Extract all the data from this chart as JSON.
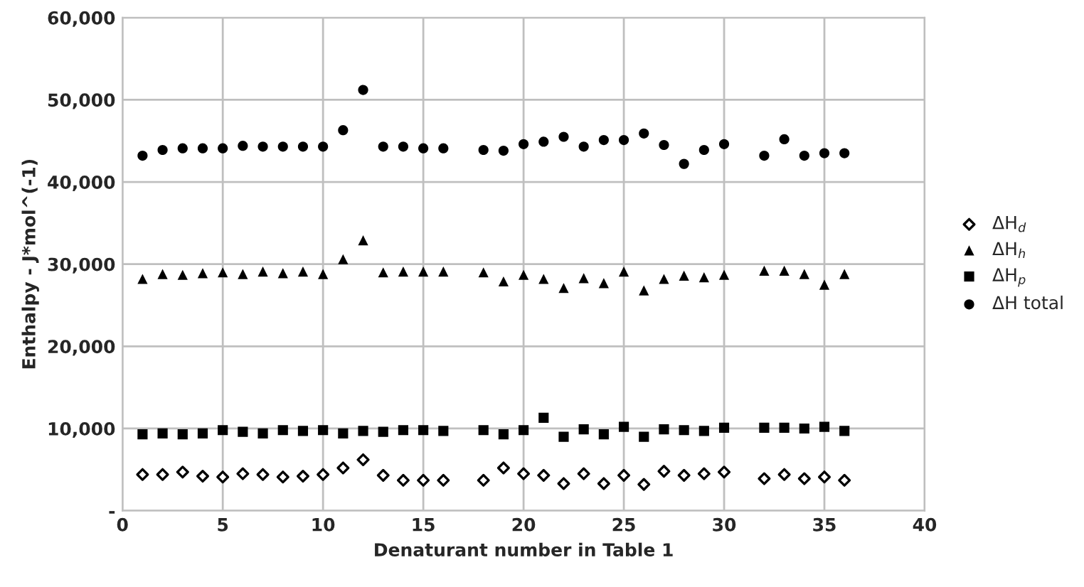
{
  "chart_data": {
    "type": "scatter",
    "xlabel": "Denaturant number in Table 1",
    "ylabel": "Enthalpy - J*mol^(-1)",
    "x": [
      1,
      2,
      3,
      4,
      5,
      6,
      7,
      8,
      9,
      10,
      11,
      12,
      13,
      14,
      15,
      16,
      18,
      19,
      20,
      21,
      22,
      23,
      24,
      25,
      26,
      27,
      28,
      29,
      30,
      32,
      33,
      34,
      35,
      36
    ],
    "series": [
      {
        "name": "ΔH$_{d}$",
        "color": "#000000",
        "marker": "diamond",
        "values": [
          4400,
          4400,
          4700,
          4200,
          4100,
          4500,
          4400,
          4100,
          4200,
          4400,
          5200,
          6200,
          4300,
          3700,
          3700,
          3700,
          3700,
          5200,
          4500,
          4300,
          3300,
          4500,
          3300,
          4300,
          3200,
          4800,
          4300,
          4500,
          4700,
          3900,
          4400,
          3900,
          4100,
          3700
        ]
      },
      {
        "name": "ΔH$_{h}$",
        "color": "#000000",
        "marker": "triangle",
        "values": [
          28200,
          28800,
          28700,
          28900,
          29000,
          28800,
          29100,
          28900,
          29100,
          28800,
          30600,
          32900,
          29000,
          29100,
          29100,
          29100,
          29000,
          27900,
          28700,
          28200,
          27100,
          28300,
          27700,
          29100,
          26800,
          28200,
          28600,
          28400,
          28700,
          29200,
          29200,
          28800,
          27500,
          28800
        ]
      },
      {
        "name": "ΔH$_{p}$",
        "color": "#000000",
        "marker": "square",
        "values": [
          9300,
          9400,
          9300,
          9400,
          9800,
          9600,
          9400,
          9800,
          9700,
          9800,
          9400,
          9700,
          9600,
          9800,
          9800,
          9700,
          9800,
          9300,
          9800,
          11300,
          9000,
          9900,
          9300,
          10200,
          9000,
          9900,
          9800,
          9700,
          10100,
          10100,
          10100,
          10000,
          10200,
          9700
        ]
      },
      {
        "name": "ΔH total",
        "color": "#000000",
        "marker": "circle",
        "values": [
          43200,
          43900,
          44100,
          44100,
          44100,
          44400,
          44300,
          44300,
          44300,
          44300,
          46300,
          51200,
          44300,
          44300,
          44100,
          44100,
          43900,
          43800,
          44600,
          44900,
          45500,
          44300,
          45100,
          45100,
          45900,
          44500,
          42200,
          43900,
          44600,
          43200,
          45200,
          43200,
          43500,
          43500
        ]
      }
    ],
    "xlim": [
      0,
      40
    ],
    "xticks": [
      0,
      5,
      10,
      15,
      20,
      25,
      30,
      35,
      40
    ],
    "ylim": [
      0,
      60000
    ],
    "yticks": [
      {
        "value": 0,
        "label": "-"
      },
      {
        "value": 10000,
        "label": "10,000"
      },
      {
        "value": 20000,
        "label": "20,000"
      },
      {
        "value": 30000,
        "label": "30,000"
      },
      {
        "value": 40000,
        "label": "40,000"
      },
      {
        "value": 50000,
        "label": "50,000"
      },
      {
        "value": 60000,
        "label": "60,000"
      }
    ],
    "grid": true,
    "legend": "right"
  }
}
